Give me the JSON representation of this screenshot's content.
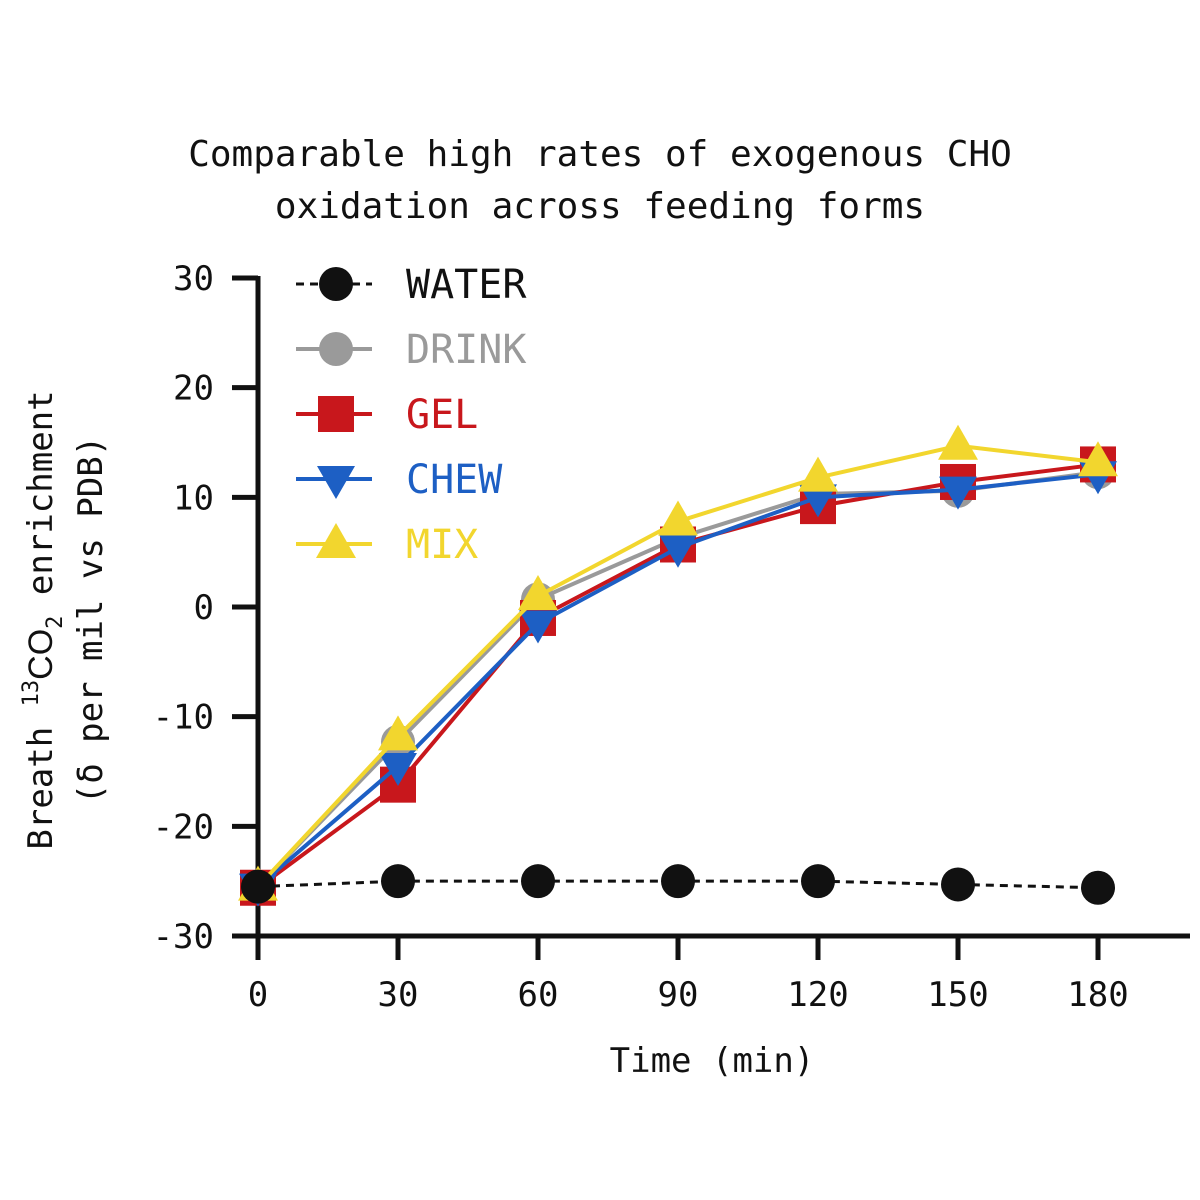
{
  "chart_data": {
    "type": "line",
    "title_lines": [
      "Comparable high rates of exogenous CHO",
      "oxidation across feeding forms"
    ],
    "xlabel": "Time (min)",
    "ylabel_line1": {
      "prefix": "Breath ",
      "superscript": "13",
      "main": "CO",
      "subscript": "2",
      "suffix": " enrichment"
    },
    "ylabel_line2": "(δ per mil vs PDB)",
    "xlim": [
      0,
      195
    ],
    "ylim": [
      -30,
      30
    ],
    "x_ticks": [
      0,
      30,
      60,
      90,
      120,
      150,
      180
    ],
    "x_tick_labels": [
      "0",
      "30",
      "60",
      "90",
      "120",
      "150",
      "180"
    ],
    "y_ticks": [
      -30,
      -20,
      -10,
      0,
      10,
      20,
      30
    ],
    "y_tick_labels": [
      "-30",
      "-20",
      "-10",
      "0",
      "10",
      "20",
      "30"
    ],
    "grid": false,
    "legend_position": "top-left",
    "x": [
      0,
      30,
      60,
      90,
      120,
      150,
      180
    ],
    "series": [
      {
        "name": "WATER",
        "values": [
          -25.5,
          -25,
          -25,
          -25,
          -25,
          -25.3,
          -25.6
        ],
        "color": "#111111",
        "marker": "circle",
        "dashed": true
      },
      {
        "name": "DRINK",
        "values": [
          -25.5,
          -12.3,
          0.7,
          6.3,
          10.3,
          10.6,
          12.3
        ],
        "color": "#9a9a9a",
        "marker": "circle",
        "dashed": false
      },
      {
        "name": "GEL",
        "values": [
          -25.6,
          -16.2,
          -1.0,
          5.7,
          9.2,
          11.4,
          13.0
        ],
        "color": "#c8171c",
        "marker": "square",
        "dashed": false
      },
      {
        "name": "CHEW",
        "values": [
          -25.5,
          -14.5,
          -1.5,
          5.4,
          10.0,
          10.7,
          12.1
        ],
        "color": "#1d5fc4",
        "marker": "triangle-down",
        "dashed": false
      },
      {
        "name": "MIX",
        "values": [
          -25.5,
          -11.8,
          1.0,
          7.8,
          11.8,
          14.7,
          13.2
        ],
        "color": "#f2d62e",
        "marker": "triangle-up",
        "dashed": false
      }
    ]
  }
}
